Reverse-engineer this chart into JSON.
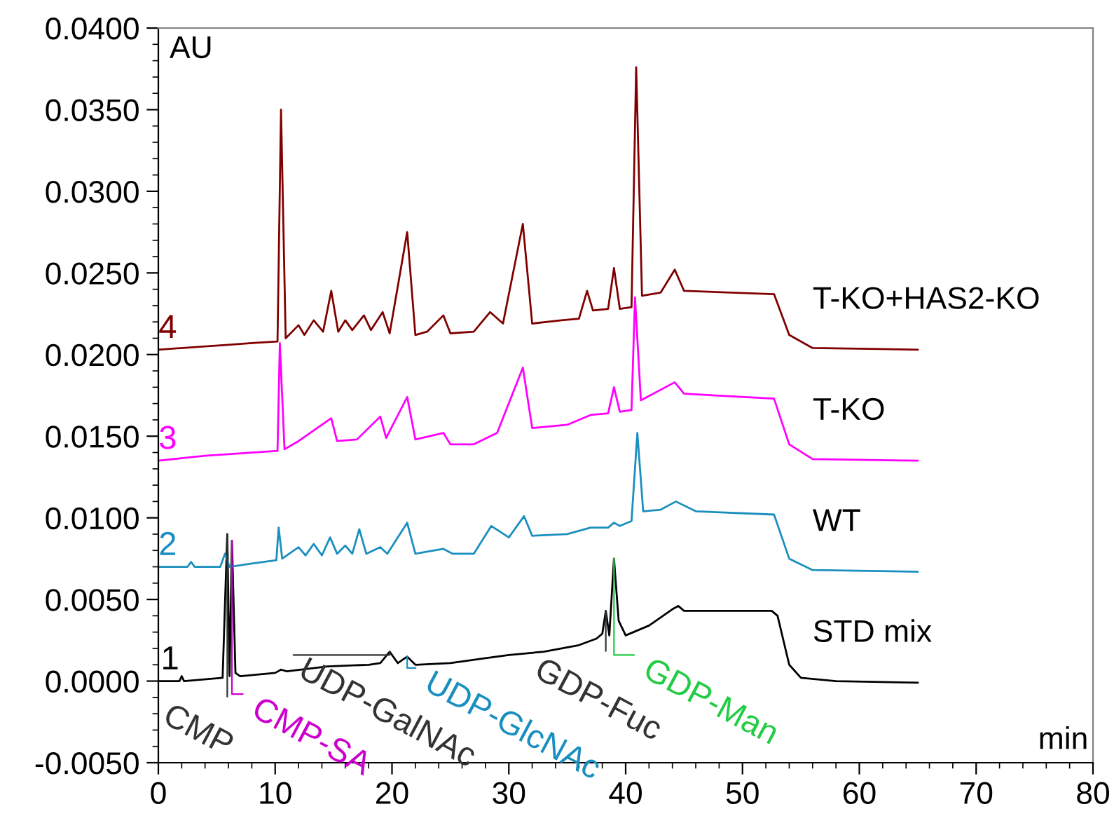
{
  "chart_data": {
    "type": "line",
    "xlabel": "min",
    "ylabel": "AU",
    "xlim": [
      0,
      80
    ],
    "xticks": [
      0,
      10,
      20,
      30,
      40,
      50,
      60,
      70,
      80
    ],
    "ylim": [
      -0.005,
      0.04
    ],
    "yticks": [
      {
        "value": -0.005,
        "label": "-0.0050"
      },
      {
        "value": 0,
        "label": "0.0000"
      },
      {
        "value": 0.005,
        "label": "0.0050"
      },
      {
        "value": 0.01,
        "label": "0.0100"
      },
      {
        "value": 0.015,
        "label": "0.0150"
      },
      {
        "value": 0.02,
        "label": "0.0200"
      },
      {
        "value": 0.025,
        "label": "0.0250"
      },
      {
        "value": 0.03,
        "label": "0.0300"
      },
      {
        "value": 0.035,
        "label": "0.0350"
      },
      {
        "value": 0.04,
        "label": "0.0400"
      }
    ],
    "grid": false,
    "marker": "none",
    "line_style": "solid",
    "series": [
      {
        "name": "STD mix",
        "color": "#000000",
        "x": [
          0,
          1.8,
          2,
          2.2,
          5.5,
          5.9,
          6.1,
          6.3,
          6.6,
          7,
          10,
          10.5,
          11,
          14.5,
          18,
          19,
          19.8,
          20.5,
          21.3,
          22,
          25,
          28,
          30,
          33,
          36,
          37.5,
          38,
          38.3,
          38.6,
          39,
          39.4,
          40,
          42,
          44,
          44.5,
          45,
          50,
          52.5,
          53,
          54,
          55,
          58,
          65
        ],
        "values": [
          0.0,
          0.0,
          0.0003,
          0.0,
          0.0002,
          0.009,
          0.0003,
          0.0086,
          0.0005,
          0.0003,
          0.0005,
          0.0007,
          0.0006,
          0.0009,
          0.001,
          0.0011,
          0.0018,
          0.0011,
          0.0015,
          0.001,
          0.0011,
          0.0014,
          0.0016,
          0.0018,
          0.0022,
          0.0026,
          0.0029,
          0.0043,
          0.0028,
          0.0075,
          0.0037,
          0.0028,
          0.0034,
          0.0044,
          0.0046,
          0.0043,
          0.0043,
          0.0043,
          0.004,
          0.001,
          0.0002,
          0.0,
          -0.0001
        ]
      },
      {
        "name": "WT",
        "color": "#1a8fbf",
        "x": [
          0,
          2.5,
          2.8,
          3.1,
          5.3,
          5.7,
          6.1,
          8,
          10.1,
          10.3,
          10.6,
          12,
          12.6,
          13.3,
          14,
          14.7,
          15.3,
          16,
          16.6,
          17.2,
          17.8,
          19,
          19.6,
          21.3,
          22,
          24.4,
          25.2,
          27,
          28.5,
          30,
          31.3,
          32,
          35,
          37,
          38.5,
          39,
          39.5,
          40.5,
          41,
          41.5,
          43,
          44.3,
          46,
          52.7,
          54,
          56,
          65
        ],
        "values": [
          0.007,
          0.007,
          0.0073,
          0.007,
          0.007,
          0.0078,
          0.007,
          0.0072,
          0.0074,
          0.0094,
          0.0075,
          0.0082,
          0.0077,
          0.0084,
          0.0077,
          0.0088,
          0.0078,
          0.0083,
          0.0078,
          0.0093,
          0.0078,
          0.0082,
          0.0078,
          0.0097,
          0.0078,
          0.0081,
          0.0078,
          0.0078,
          0.0095,
          0.0088,
          0.0101,
          0.0089,
          0.009,
          0.0094,
          0.0094,
          0.0097,
          0.0095,
          0.0098,
          0.0152,
          0.0104,
          0.0105,
          0.011,
          0.0104,
          0.0102,
          0.0075,
          0.0068,
          0.0067
        ]
      },
      {
        "name": "T-KO",
        "color": "#ff00ff",
        "x": [
          0,
          4,
          6,
          8,
          10.2,
          10.4,
          10.8,
          12,
          14.8,
          15.3,
          17,
          19,
          19.5,
          21.3,
          22,
          24.4,
          25,
          27,
          29,
          31.2,
          32,
          35,
          37,
          38.5,
          39,
          39.5,
          40.5,
          40.8,
          41.3,
          44.2,
          45,
          52.7,
          54,
          56,
          65
        ],
        "values": [
          0.0135,
          0.0138,
          0.0139,
          0.014,
          0.0141,
          0.0207,
          0.0142,
          0.0147,
          0.0161,
          0.0147,
          0.0148,
          0.0162,
          0.0149,
          0.0174,
          0.0148,
          0.0152,
          0.0145,
          0.0145,
          0.0152,
          0.0192,
          0.0155,
          0.0157,
          0.0163,
          0.0164,
          0.018,
          0.0165,
          0.0166,
          0.0235,
          0.0172,
          0.0183,
          0.0176,
          0.0173,
          0.0145,
          0.0136,
          0.0135
        ]
      },
      {
        "name": "T-KO+HAS2-KO",
        "color": "#800000",
        "x": [
          0,
          4,
          6,
          8,
          10.2,
          10.5,
          10.9,
          12,
          12.5,
          13.3,
          14.1,
          14.8,
          15.4,
          16,
          16.6,
          17.6,
          18.2,
          19.2,
          19.8,
          21.3,
          22,
          23,
          24.4,
          25,
          27,
          28.4,
          29.5,
          31.2,
          32,
          34.5,
          36,
          36.7,
          37.2,
          38.5,
          39,
          39.5,
          40.5,
          40.9,
          41.4,
          43,
          44.2,
          45,
          52.7,
          54,
          56,
          65
        ],
        "values": [
          0.0203,
          0.0205,
          0.0206,
          0.0207,
          0.0208,
          0.035,
          0.021,
          0.0218,
          0.0212,
          0.0221,
          0.0214,
          0.0239,
          0.0214,
          0.0221,
          0.0215,
          0.0224,
          0.0215,
          0.0226,
          0.0213,
          0.0275,
          0.0212,
          0.0214,
          0.0224,
          0.0213,
          0.0214,
          0.0226,
          0.0219,
          0.028,
          0.0219,
          0.0221,
          0.0222,
          0.0239,
          0.0227,
          0.0228,
          0.0253,
          0.0228,
          0.0229,
          0.0376,
          0.0236,
          0.0238,
          0.0252,
          0.0239,
          0.0237,
          0.0212,
          0.0204,
          0.0203
        ]
      }
    ],
    "annotations": [
      "1",
      "2",
      "3",
      "4",
      {
        "text": "CMP",
        "x": 5.9,
        "y": 0.009
      },
      {
        "text": "CMP-SA",
        "x": 6.3,
        "y": 0.0086
      },
      {
        "text": "UDP-GalNAc",
        "x": 19.8,
        "y": 0.0018
      },
      {
        "text": "UDP-GlcNAc",
        "x": 21.3,
        "y": 0.0015
      },
      {
        "text": "GDP-Fuc",
        "x": 38.3,
        "y": 0.0043
      },
      {
        "text": "GDP-Man",
        "x": 39,
        "y": 0.0075
      }
    ]
  }
}
